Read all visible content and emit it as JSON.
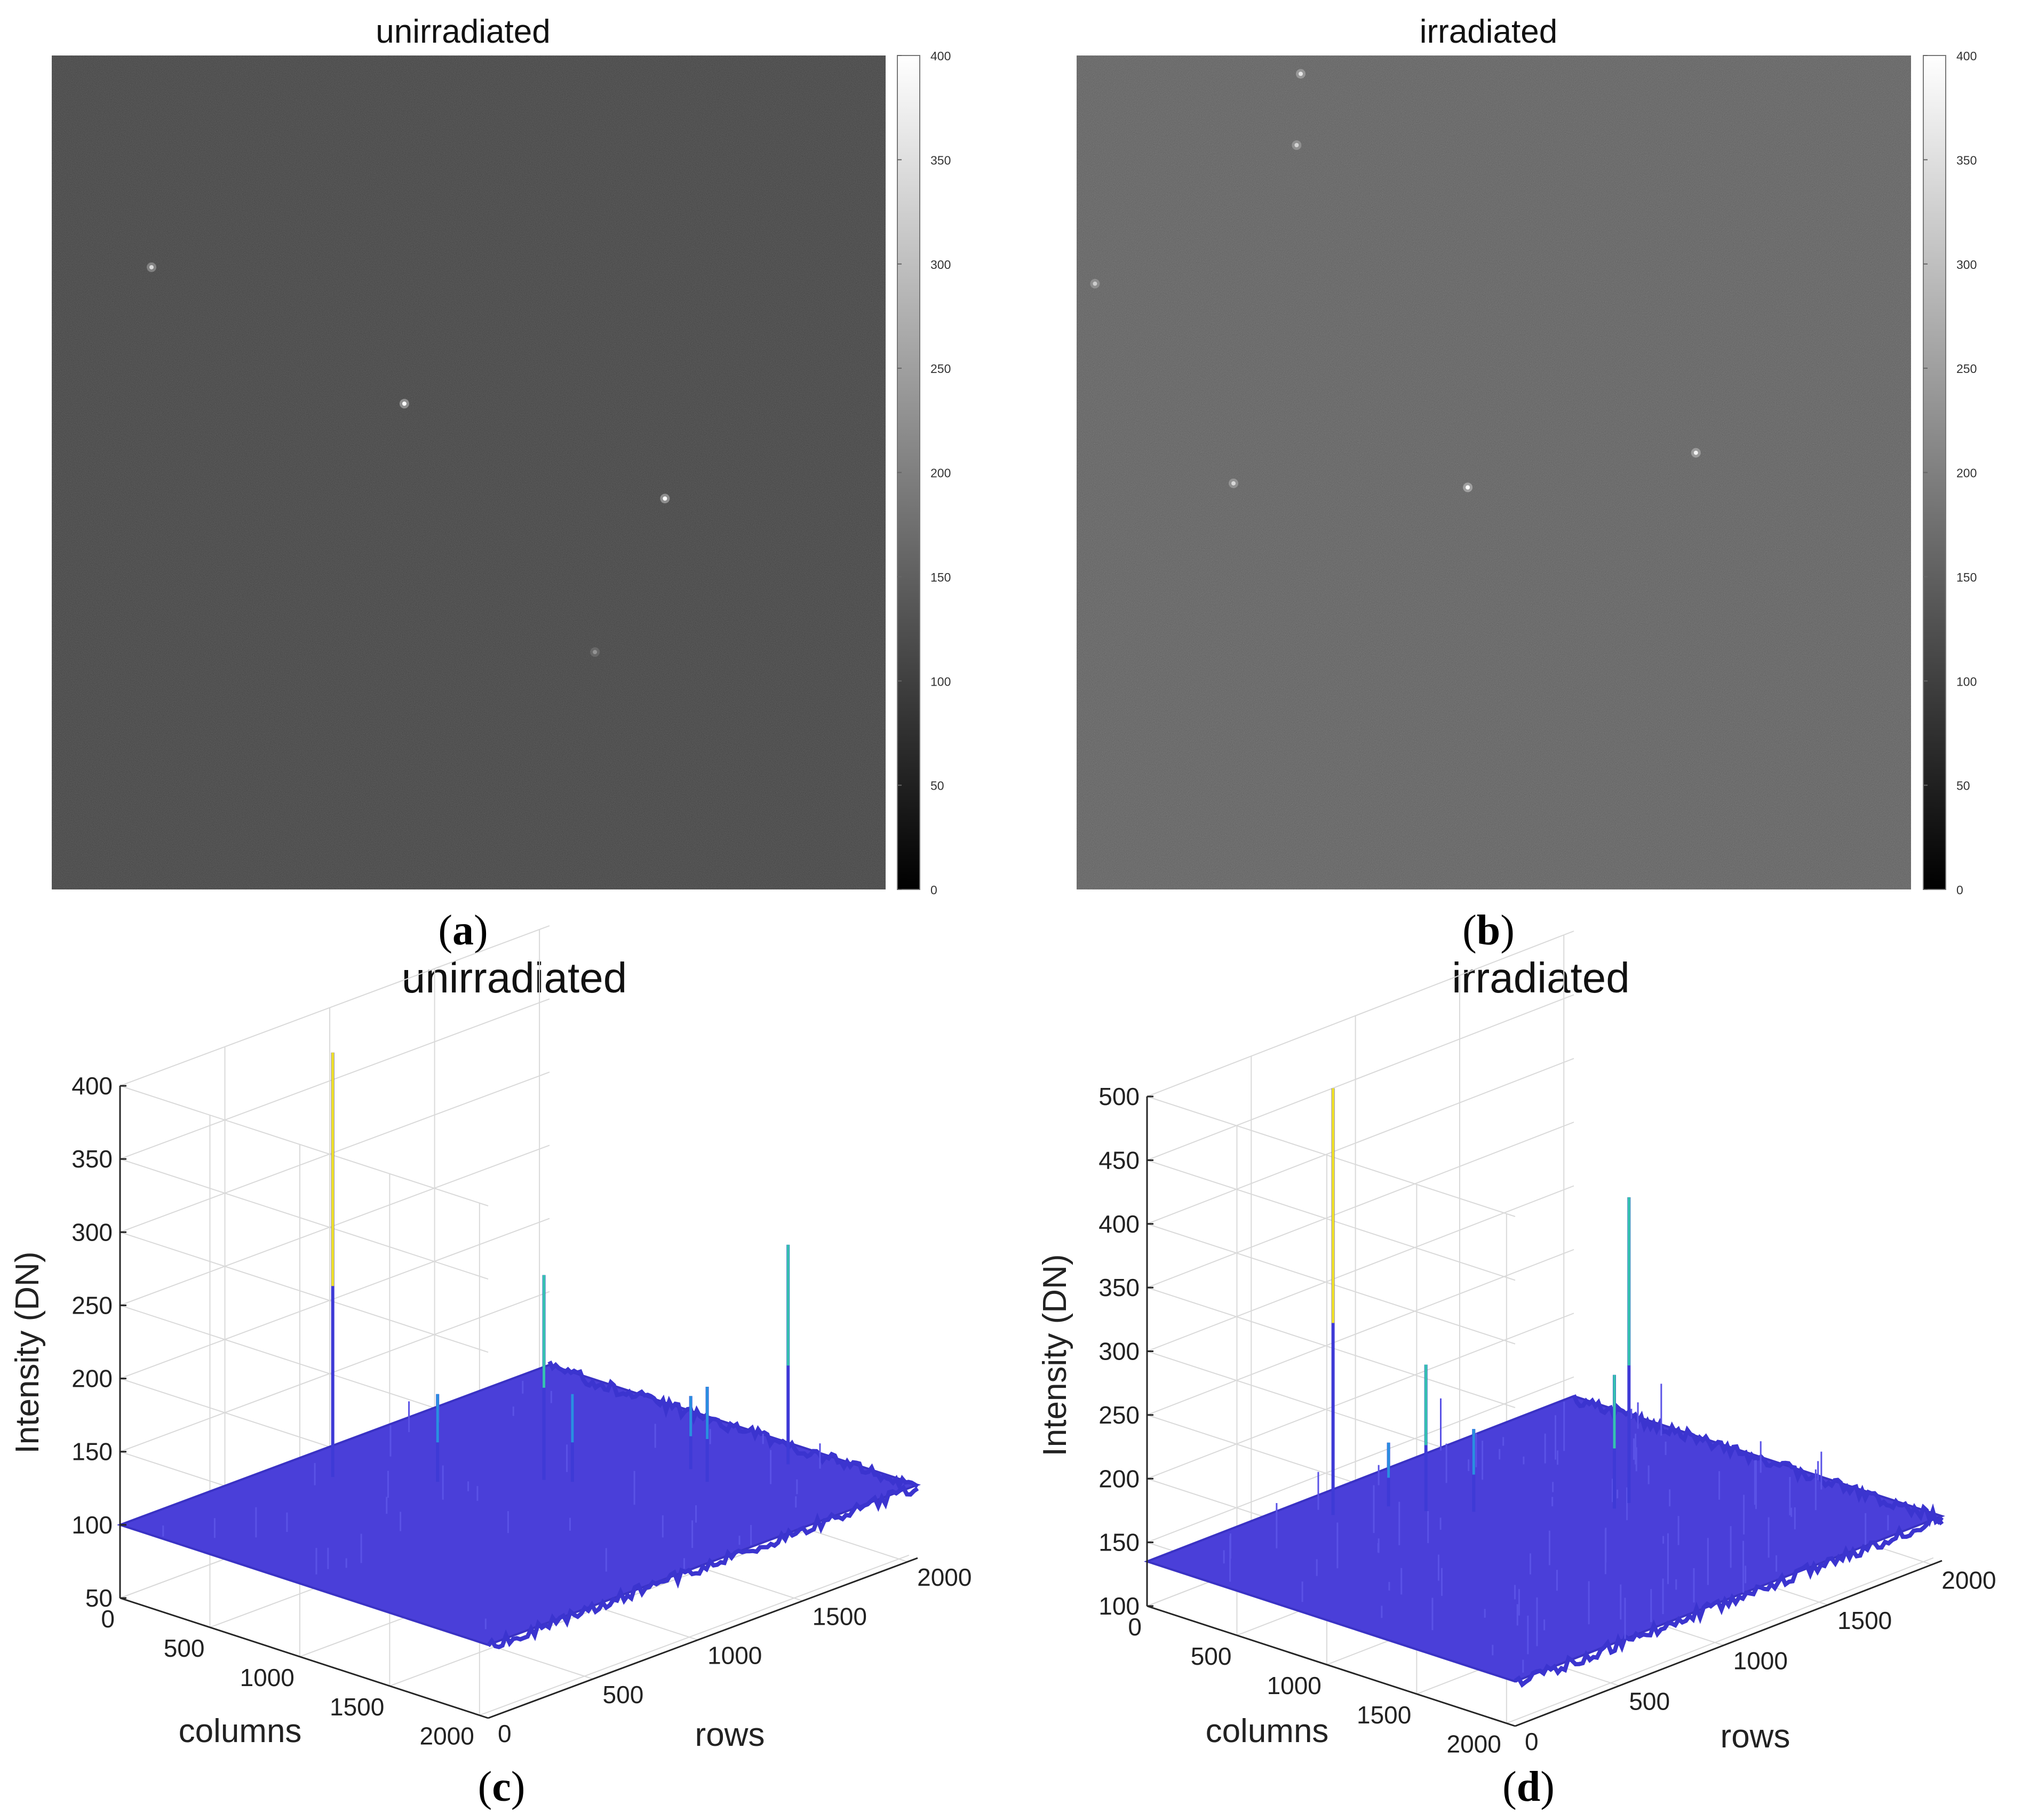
{
  "chart_data": [
    {
      "panel": "a",
      "type": "heatmap",
      "title": "unirradiated",
      "subplot_label": "a",
      "colormap": "gray",
      "clim": [
        0,
        400
      ],
      "colorbar_ticks": [
        "400",
        "350",
        "300",
        "250",
        "200",
        "150",
        "100",
        "50",
        "0"
      ],
      "background_level": 95,
      "hot_pixels": [
        {
          "row": 520,
          "col": 245,
          "value": 340
        },
        {
          "row": 855,
          "col": 866,
          "value": 400
        },
        {
          "row": 1088,
          "col": 1506,
          "value": 400
        },
        {
          "row": 1465,
          "col": 1334,
          "value": 230
        }
      ]
    },
    {
      "panel": "b",
      "type": "heatmap",
      "title": "irradiated",
      "subplot_label": "b",
      "colormap": "gray",
      "clim": [
        0,
        400
      ],
      "colorbar_ticks": [
        "400",
        "350",
        "300",
        "250",
        "200",
        "150",
        "100",
        "50",
        "0"
      ],
      "background_level": 135,
      "hot_pixels": [
        {
          "row": 45,
          "col": 550,
          "value": 360
        },
        {
          "row": 220,
          "col": 540,
          "value": 330
        },
        {
          "row": 560,
          "col": 45,
          "value": 320
        },
        {
          "row": 1050,
          "col": 385,
          "value": 340
        },
        {
          "row": 1060,
          "col": 960,
          "value": 400
        },
        {
          "row": 975,
          "col": 1520,
          "value": 380
        }
      ]
    },
    {
      "panel": "c",
      "type": "surface",
      "title": "unirradiated",
      "subplot_label": "c",
      "xlabel": "columns",
      "ylabel": "rows",
      "zlabel": "Intensity (DN)",
      "xlim": [
        0,
        2048
      ],
      "ylim": [
        0,
        2048
      ],
      "zlim": [
        50,
        400
      ],
      "xticks": [
        "0",
        "500",
        "1000",
        "1500",
        "2000"
      ],
      "yticks": [
        "0",
        "500",
        "1000",
        "1500",
        "2000"
      ],
      "zticks": [
        "50",
        "100",
        "150",
        "200",
        "250",
        "300",
        "350",
        "400"
      ],
      "colormap": "parula",
      "base_level": 100,
      "peaks": [
        {
          "column": 250,
          "row": 800,
          "value": 390
        },
        {
          "column": 900,
          "row": 1250,
          "value": 240
        },
        {
          "column": 1500,
          "row": 1900,
          "value": 250
        },
        {
          "column": 1000,
          "row": 1300,
          "value": 160
        },
        {
          "column": 600,
          "row": 1000,
          "value": 160
        },
        {
          "column": 1400,
          "row": 1600,
          "value": 165
        },
        {
          "column": 1250,
          "row": 1650,
          "value": 150
        }
      ]
    },
    {
      "panel": "d",
      "type": "surface",
      "title": "irradiated",
      "subplot_label": "d",
      "xlabel": "columns",
      "ylabel": "rows",
      "zlabel": "Intensity (DN)",
      "xlim": [
        0,
        2048
      ],
      "ylim": [
        0,
        2048
      ],
      "zlim": [
        100,
        500
      ],
      "xticks": [
        "0",
        "500",
        "1000",
        "1500",
        "2000"
      ],
      "yticks": [
        "0",
        "500",
        "1000",
        "1500",
        "2000"
      ],
      "zticks": [
        "100",
        "150",
        "200",
        "250",
        "300",
        "350",
        "400",
        "450",
        "500"
      ],
      "colormap": "parula",
      "base_level": 135,
      "peaks": [
        {
          "column": 200,
          "row": 720,
          "value": 470
        },
        {
          "column": 1000,
          "row": 1450,
          "value": 375
        },
        {
          "column": 450,
          "row": 950,
          "value": 250
        },
        {
          "column": 1000,
          "row": 1380,
          "value": 240
        },
        {
          "column": 600,
          "row": 1050,
          "value": 200
        },
        {
          "column": 300,
          "row": 900,
          "value": 185
        }
      ]
    }
  ]
}
